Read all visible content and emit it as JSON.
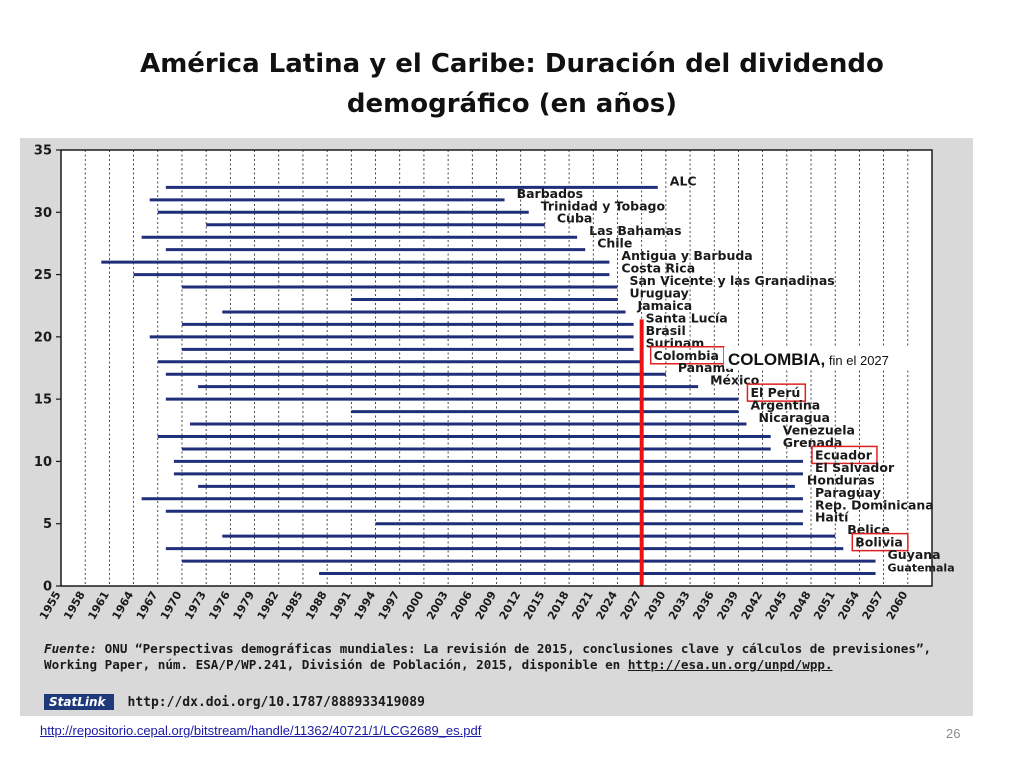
{
  "slide": {
    "title": "América Latina y el Caribe: Duración del dividendo demográfico (en años)",
    "page_number": "26",
    "link": "http://repositorio.cepal.org/bitstream/handle/11362/40721/1/LCG2689_es.pdf"
  },
  "source": {
    "label": "Fuente:",
    "text": "ONU “Perspectivas demográficas mundiales: La revisión de 2015, conclusiones clave y cálculos de previsiones”, Working Paper, núm. ESA/P/WP.241, División de Población, 2015, disponible en",
    "url": "http://esa.un.org/unpd/wpp.",
    "statlink_label": "StatLink",
    "doi": "http://dx.doi.org/10.1787/888933419089"
  },
  "chart_data": {
    "type": "bar",
    "orientation": "horizontal-range",
    "x_ticks": [
      "1955",
      "1958",
      "1961",
      "1964",
      "1967",
      "1970",
      "1973",
      "1976",
      "1979",
      "1982",
      "1985",
      "1988",
      "1991",
      "1994",
      "1997",
      "2000",
      "2003",
      "2006",
      "2009",
      "2012",
      "2015",
      "2018",
      "2021",
      "2024",
      "2027",
      "2030",
      "2033",
      "2036",
      "2039",
      "2042",
      "2045",
      "2048",
      "2051",
      "2054",
      "2057",
      "2060"
    ],
    "xlim": [
      1955,
      2063
    ],
    "ylim": [
      0,
      35
    ],
    "y_ticks": [
      0,
      5,
      10,
      15,
      20,
      25,
      30,
      35
    ],
    "grid": true,
    "bar_color": "#1f2f7a",
    "reference_line": {
      "x": 2027,
      "color": "#ee1111"
    },
    "annotation": {
      "bold": "COLOMBIA,",
      "rest": " fin el 2027"
    },
    "highlight_color": "#e02020",
    "countries": [
      {
        "name": "ALC",
        "y": 32,
        "start": 1968,
        "end": 2029
      },
      {
        "name": "Barbados",
        "y": 31,
        "start": 1966,
        "end": 2010
      },
      {
        "name": "Trinidad y Tobago",
        "y": 30,
        "start": 1967,
        "end": 2013
      },
      {
        "name": "Cuba",
        "y": 29,
        "start": 1973,
        "end": 2015
      },
      {
        "name": "Las Bahamas",
        "y": 28,
        "start": 1965,
        "end": 2019
      },
      {
        "name": "Chile",
        "y": 27,
        "start": 1968,
        "end": 2020
      },
      {
        "name": "Antigua y Barbuda",
        "y": 26,
        "start": 1960,
        "end": 2023
      },
      {
        "name": "Costa Rica",
        "y": 25,
        "start": 1964,
        "end": 2023
      },
      {
        "name": "San Vicente y las Granadinas",
        "y": 24,
        "start": 1970,
        "end": 2024
      },
      {
        "name": "Uruguay",
        "y": 23,
        "start": 1991,
        "end": 2024
      },
      {
        "name": "Jamaica",
        "y": 22,
        "start": 1975,
        "end": 2025
      },
      {
        "name": "Santa Lucía",
        "y": 21,
        "start": 1970,
        "end": 2026
      },
      {
        "name": "Brasil",
        "y": 20,
        "start": 1966,
        "end": 2026
      },
      {
        "name": "Surinam",
        "y": 19,
        "start": 1970,
        "end": 2026
      },
      {
        "name": "Colombia",
        "y": 18,
        "start": 1967,
        "end": 2027,
        "highlight": true
      },
      {
        "name": "Panamá",
        "y": 17,
        "start": 1968,
        "end": 2030
      },
      {
        "name": "México",
        "y": 16,
        "start": 1972,
        "end": 2034
      },
      {
        "name": "El Perú",
        "y": 15,
        "start": 1968,
        "end": 2039,
        "highlight": true
      },
      {
        "name": "Argentina",
        "y": 14,
        "start": 1991,
        "end": 2039
      },
      {
        "name": "Nicaragua",
        "y": 13,
        "start": 1971,
        "end": 2040
      },
      {
        "name": "Venezuela",
        "y": 12,
        "start": 1967,
        "end": 2043
      },
      {
        "name": "Grenada",
        "y": 11,
        "start": 1970,
        "end": 2043
      },
      {
        "name": "Ecuador",
        "y": 10,
        "start": 1969,
        "end": 2047,
        "highlight": true
      },
      {
        "name": "El Salvador",
        "y": 9,
        "start": 1969,
        "end": 2047
      },
      {
        "name": "Honduras",
        "y": 8,
        "start": 1972,
        "end": 2046
      },
      {
        "name": "Paraguay",
        "y": 7,
        "start": 1965,
        "end": 2047
      },
      {
        "name": "Rep. Dominicana",
        "y": 6,
        "start": 1968,
        "end": 2047
      },
      {
        "name": "Haití",
        "y": 5,
        "start": 1994,
        "end": 2047
      },
      {
        "name": "Belice",
        "y": 4,
        "start": 1975,
        "end": 2051
      },
      {
        "name": "Bolivia",
        "y": 3,
        "start": 1968,
        "end": 2052,
        "highlight": true
      },
      {
        "name": "Guyana",
        "y": 2,
        "start": 1970,
        "end": 2056
      },
      {
        "name": "Guatemala",
        "y": 1,
        "start": 1987,
        "end": 2056
      }
    ]
  }
}
